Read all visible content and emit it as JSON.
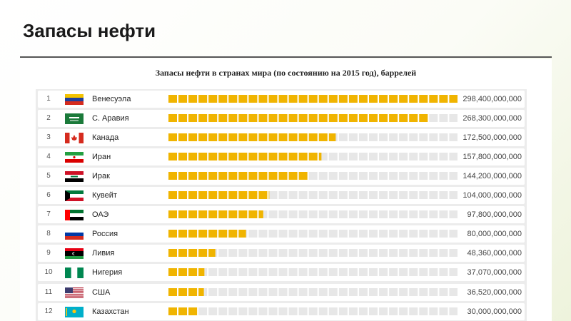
{
  "slide": {
    "title": "Запасы нефти"
  },
  "chart_data": {
    "type": "bar",
    "title": "Запасы нефти в странах мира (по состоянию на 2015 год), баррелей",
    "xlabel": "",
    "ylabel": "",
    "orientation": "horizontal",
    "bar_color": "#f0b400",
    "track_color": "#e7e7e7",
    "xlim": [
      0,
      298400000000
    ],
    "grid": false,
    "categories": [
      "Венесуэла",
      "С. Аравия",
      "Канада",
      "Иран",
      "Ирак",
      "Кувейт",
      "ОАЭ",
      "Россия",
      "Ливия",
      "Нигерия",
      "США",
      "Казахстан"
    ],
    "ranks": [
      "1",
      "2",
      "3",
      "4",
      "5",
      "6",
      "7",
      "8",
      "9",
      "10",
      "11",
      "12"
    ],
    "values": [
      298400000000,
      268300000000,
      172500000000,
      157800000000,
      144200000000,
      104000000000,
      97800000000,
      80000000000,
      48360000000,
      37070000000,
      36520000000,
      30000000000
    ],
    "value_labels": [
      "298,400,000,000",
      "268,300,000,000",
      "172,500,000,000",
      "157,800,000,000",
      "144,200,000,000",
      "104,000,000,000",
      "97,800,000,000",
      "80,000,000,000",
      "48,360,000,000",
      "37,070,000,000",
      "36,520,000,000",
      "30,000,000,000"
    ],
    "flags": [
      "venezuela-flag-icon",
      "saudi-arabia-flag-icon",
      "canada-flag-icon",
      "iran-flag-icon",
      "iraq-flag-icon",
      "kuwait-flag-icon",
      "uae-flag-icon",
      "russia-flag-icon",
      "libya-flag-icon",
      "nigeria-flag-icon",
      "usa-flag-icon",
      "kazakhstan-flag-icon"
    ]
  }
}
